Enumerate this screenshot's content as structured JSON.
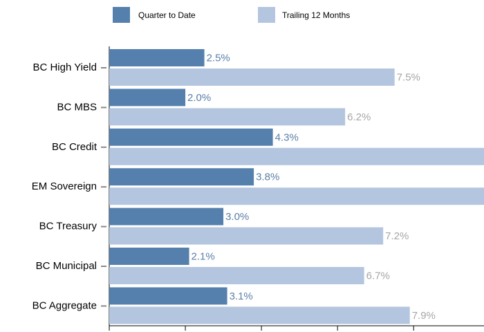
{
  "chart_data": {
    "type": "bar",
    "orientation": "horizontal",
    "categories": [
      "BC High Yield",
      "BC MBS",
      "BC Credit",
      "EM Sovereign",
      "BC Treasury",
      "BC Municipal",
      "BC Aggregate"
    ],
    "series": [
      {
        "name": "Quarter to Date",
        "color": "#5580ad",
        "label_color": "#5a7fa8",
        "values": [
          2.5,
          2.0,
          4.3,
          3.8,
          3.0,
          2.1,
          3.1
        ],
        "value_labels": [
          "2.5%",
          "2.0%",
          "4.3%",
          "3.8%",
          "3.0%",
          "2.1%",
          "3.1%"
        ]
      },
      {
        "name": "Trailing 12 Months",
        "color": "#b4c6df",
        "label_color": "#a6a6a6",
        "values": [
          7.5,
          6.2,
          10.5,
          10.8,
          7.2,
          6.7,
          7.9
        ],
        "value_labels": [
          "7.5%",
          "6.2%",
          null,
          null,
          "7.2%",
          "6.7%",
          "7.9%"
        ]
      }
    ],
    "xlim": [
      0,
      9.85
    ],
    "xticks": [
      0,
      2,
      4,
      6,
      8
    ]
  }
}
